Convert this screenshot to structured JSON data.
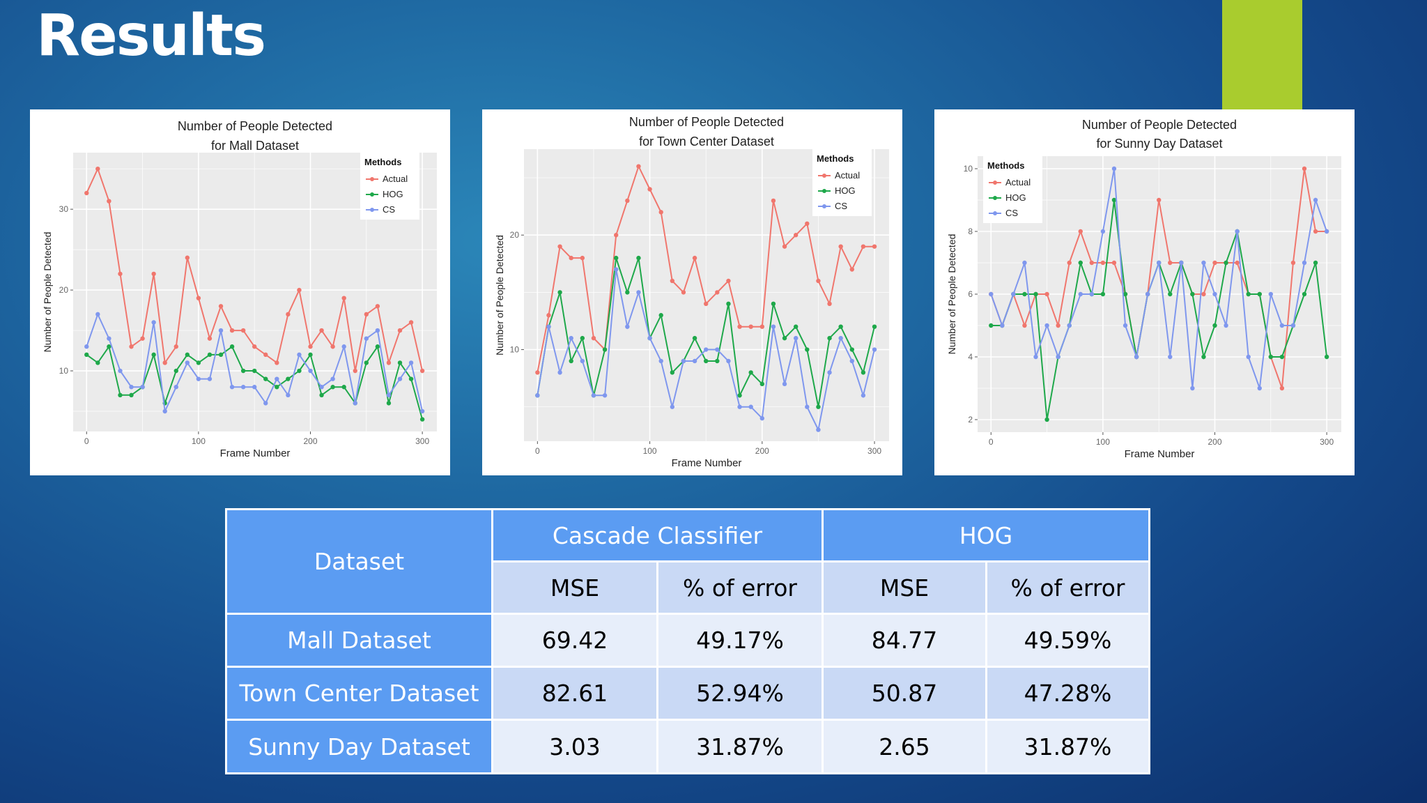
{
  "slide": {
    "title": "Results",
    "accent_color": "#a9cc2e"
  },
  "colors": {
    "actual": "#f0766d",
    "hog": "#1ea84a",
    "cs": "#7f97ee",
    "plot_bg": "#ebebeb",
    "grid": "#ffffff"
  },
  "legend": {
    "title": "Methods",
    "labels": [
      "Actual",
      "HOG",
      "CS"
    ]
  },
  "chart_data": [
    {
      "type": "line",
      "title": [
        "Number of People Detected",
        "for Mall Dataset"
      ],
      "xlabel": "Frame Number",
      "ylabel": "Number of People Detected",
      "xlim": [
        -12,
        313
      ],
      "ylim": [
        2.5,
        37
      ],
      "xticks": [
        0,
        100,
        200,
        300
      ],
      "yticks": [
        10,
        20,
        30
      ],
      "legend_position": "top-right",
      "grid": true,
      "x": [
        0,
        10,
        20,
        30,
        40,
        50,
        60,
        70,
        80,
        90,
        100,
        110,
        120,
        130,
        140,
        150,
        160,
        170,
        180,
        190,
        200,
        210,
        220,
        230,
        240,
        250,
        260,
        270,
        280,
        290,
        300
      ],
      "series": [
        {
          "name": "Actual",
          "values": [
            32,
            35,
            31,
            22,
            13,
            14,
            22,
            11,
            13,
            24,
            19,
            14,
            18,
            15,
            15,
            13,
            12,
            11,
            17,
            20,
            13,
            15,
            13,
            19,
            10,
            17,
            18,
            11,
            15,
            16,
            10
          ]
        },
        {
          "name": "HOG",
          "values": [
            12,
            11,
            13,
            7,
            7,
            8,
            12,
            6,
            10,
            12,
            11,
            12,
            12,
            13,
            10,
            10,
            9,
            8,
            9,
            10,
            12,
            7,
            8,
            8,
            6,
            11,
            13,
            6,
            11,
            9,
            4
          ]
        },
        {
          "name": "CS",
          "values": [
            13,
            17,
            14,
            10,
            8,
            8,
            16,
            5,
            8,
            11,
            9,
            9,
            15,
            8,
            8,
            8,
            6,
            9,
            7,
            12,
            10,
            8,
            9,
            13,
            6,
            14,
            15,
            7,
            9,
            11,
            5
          ]
        }
      ]
    },
    {
      "type": "line",
      "title": [
        "Number of People Detected",
        "for Town Center Dataset"
      ],
      "xlabel": "Frame Number",
      "ylabel": "Number of People Detected",
      "xlim": [
        -12,
        313
      ],
      "ylim": [
        2,
        27.5
      ],
      "xticks": [
        0,
        100,
        200,
        300
      ],
      "yticks": [
        10,
        20
      ],
      "legend_position": "top-right",
      "grid": true,
      "x": [
        0,
        10,
        20,
        30,
        40,
        50,
        60,
        70,
        80,
        90,
        100,
        110,
        120,
        130,
        140,
        150,
        160,
        170,
        180,
        190,
        200,
        210,
        220,
        230,
        240,
        250,
        260,
        270,
        280,
        290,
        300
      ],
      "series": [
        {
          "name": "Actual",
          "values": [
            8,
            13,
            19,
            18,
            18,
            11,
            10,
            20,
            23,
            26,
            24,
            22,
            16,
            15,
            18,
            14,
            15,
            16,
            12,
            12,
            12,
            23,
            19,
            20,
            21,
            16,
            14,
            19,
            17,
            19,
            19
          ]
        },
        {
          "name": "HOG",
          "values": [
            6,
            12,
            15,
            9,
            11,
            6,
            10,
            18,
            15,
            18,
            11,
            13,
            8,
            9,
            11,
            9,
            9,
            14,
            6,
            8,
            7,
            14,
            11,
            12,
            10,
            5,
            11,
            12,
            10,
            8,
            12
          ]
        },
        {
          "name": "CS",
          "values": [
            6,
            12,
            8,
            11,
            9,
            6,
            6,
            17,
            12,
            15,
            11,
            9,
            5,
            9,
            9,
            10,
            10,
            9,
            5,
            5,
            4,
            12,
            7,
            11,
            5,
            3,
            8,
            11,
            9,
            6,
            10
          ]
        }
      ]
    },
    {
      "type": "line",
      "title": [
        "Number of People Detected",
        "for Sunny Day Dataset"
      ],
      "xlabel": "Frame Number",
      "ylabel": "Number of People Detected",
      "xlim": [
        -12,
        313
      ],
      "ylim": [
        1.6,
        10.4
      ],
      "xticks": [
        0,
        100,
        200,
        300
      ],
      "yticks": [
        2,
        4,
        6,
        8,
        10
      ],
      "legend_position": "top-left",
      "grid": true,
      "x": [
        0,
        10,
        20,
        30,
        40,
        50,
        60,
        70,
        80,
        90,
        100,
        110,
        120,
        130,
        140,
        150,
        160,
        170,
        180,
        190,
        200,
        210,
        220,
        230,
        240,
        250,
        260,
        270,
        280,
        290,
        300
      ],
      "series": [
        {
          "name": "Actual",
          "values": [
            6,
            5,
            6,
            5,
            6,
            6,
            5,
            7,
            8,
            7,
            7,
            7,
            6,
            4,
            6,
            9,
            7,
            7,
            6,
            6,
            7,
            7,
            7,
            6,
            6,
            4,
            3,
            7,
            10,
            8,
            8
          ]
        },
        {
          "name": "HOG",
          "values": [
            5,
            5,
            6,
            6,
            6,
            2,
            4,
            5,
            7,
            6,
            6,
            9,
            6,
            4,
            6,
            7,
            6,
            7,
            6,
            4,
            5,
            7,
            8,
            6,
            6,
            4,
            4,
            5,
            6,
            7,
            4
          ]
        },
        {
          "name": "CS",
          "values": [
            6,
            5,
            6,
            7,
            4,
            5,
            4,
            5,
            6,
            6,
            8,
            10,
            5,
            4,
            6,
            7,
            4,
            7,
            3,
            7,
            6,
            5,
            8,
            4,
            3,
            6,
            5,
            5,
            7,
            9,
            8
          ]
        }
      ]
    }
  ],
  "table": {
    "header": {
      "dataset": "Dataset",
      "cascade": "Cascade Classifier",
      "hog": "HOG"
    },
    "subheaders": [
      "MSE",
      "% of error",
      "MSE",
      "% of error"
    ],
    "rows": [
      {
        "dataset": "Mall Dataset",
        "values": [
          "69.42",
          "49.17%",
          "84.77",
          "49.59%"
        ]
      },
      {
        "dataset": "Town Center Dataset",
        "values": [
          "82.61",
          "52.94%",
          "50.87",
          "47.28%"
        ]
      },
      {
        "dataset": "Sunny Day Dataset",
        "values": [
          "3.03",
          "31.87%",
          "2.65",
          "31.87%"
        ]
      }
    ],
    "colors": {
      "header_bg": "#5b9cf2",
      "subheader_bg": "#c9d9f5",
      "row_label_bg": "#5b9cf2",
      "row_light": "#e7eefa",
      "row_dark": "#c9d9f5"
    }
  }
}
